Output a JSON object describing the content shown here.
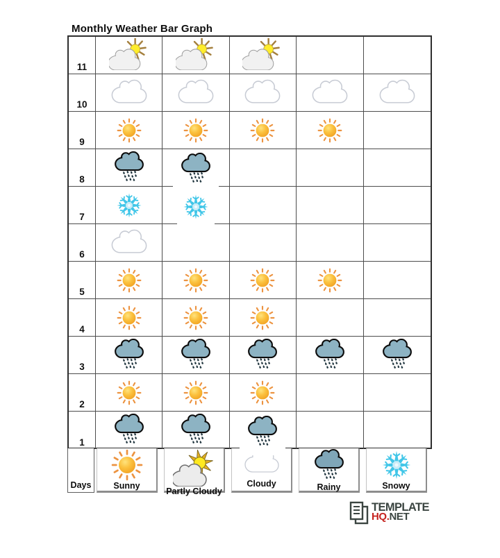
{
  "page": {
    "title": "Monthly Weather Bar Graph"
  },
  "legend": {
    "days_label": "Days",
    "items": [
      {
        "label": "Sunny",
        "icon": "sunny"
      },
      {
        "label": "Partly Cloudy",
        "icon": "partly-cloudy"
      },
      {
        "label": "Cloudy",
        "icon": "cloudy"
      },
      {
        "label": "Rainy",
        "icon": "rainy"
      },
      {
        "label": "Snowy",
        "icon": "snowy"
      }
    ]
  },
  "chart_data": {
    "type": "pictograph",
    "title": "Monthly Weather Bar Graph",
    "row_axis_label": "Days",
    "row_range": [
      1,
      11
    ],
    "columns_per_row": 5,
    "legend_entries": [
      "Sunny",
      "Partly Cloudy",
      "Cloudy",
      "Rainy",
      "Snowy"
    ],
    "rows": [
      {
        "day": 11,
        "weather": "Partly Cloudy",
        "icon": "partly-cloudy",
        "count": 3
      },
      {
        "day": 10,
        "weather": "Cloudy",
        "icon": "cloudy",
        "count": 5
      },
      {
        "day": 9,
        "weather": "Sunny",
        "icon": "sunny",
        "count": 4
      },
      {
        "day": 8,
        "weather": "Rainy",
        "icon": "rainy",
        "count": 2
      },
      {
        "day": 7,
        "weather": "Snowy",
        "icon": "snowy",
        "count": 2
      },
      {
        "day": 6,
        "weather": "Cloudy",
        "icon": "cloudy",
        "count": 1
      },
      {
        "day": 5,
        "weather": "Sunny",
        "icon": "sunny",
        "count": 4
      },
      {
        "day": 4,
        "weather": "Sunny",
        "icon": "sunny",
        "count": 3
      },
      {
        "day": 3,
        "weather": "Rainy",
        "icon": "rainy",
        "count": 5
      },
      {
        "day": 2,
        "weather": "Sunny",
        "icon": "sunny",
        "count": 3
      },
      {
        "day": 1,
        "weather": "Rainy",
        "icon": "rainy",
        "count": 3
      }
    ]
  },
  "logo": {
    "line1": "TEMPLATE",
    "hq": "HQ",
    "dot": ".",
    "net": "NET"
  },
  "colors": {
    "grid_line": "#4c4c4c",
    "sun_body": "#fbbc3e",
    "sun_rays": "#ec9340",
    "cloud_outline": "#c7cbd4",
    "rain_cloud_fill": "#8db3c3",
    "rain_drop": "#223740",
    "snowflake": "#41c6e8",
    "partly_rays": "#a5803e",
    "legend_ray_gold": "#e2af25",
    "logo_red": "#c5231f",
    "logo_dark": "#3b4541"
  }
}
